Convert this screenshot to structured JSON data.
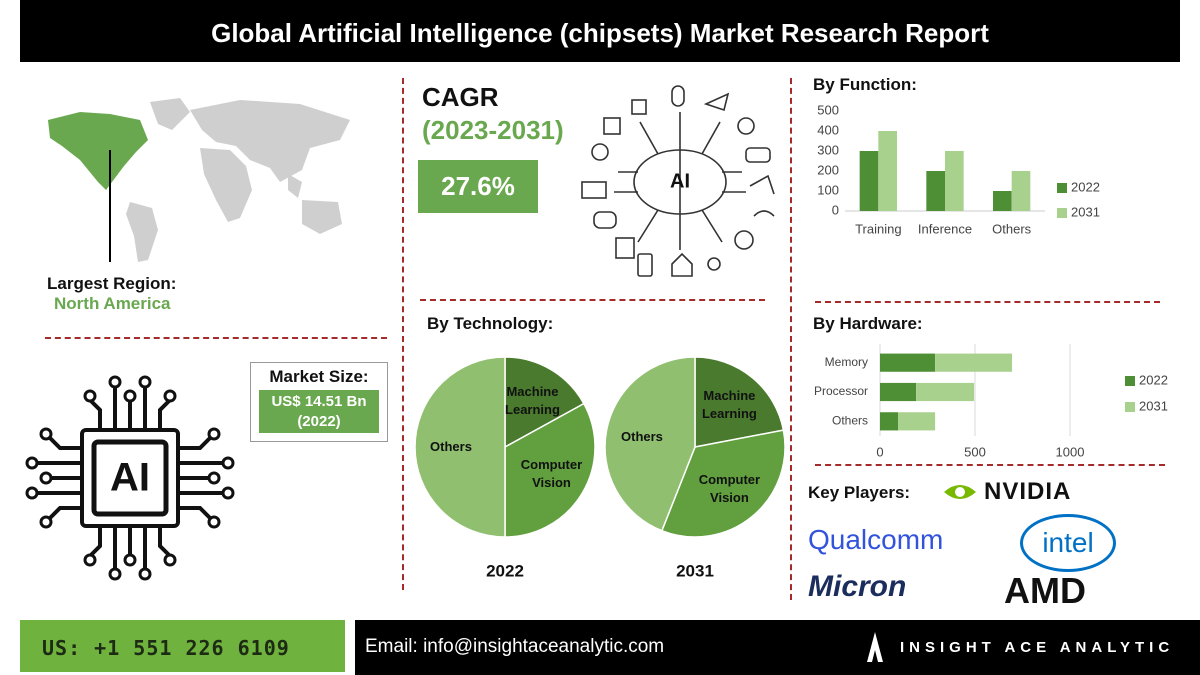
{
  "header": {
    "title": "Global Artificial Intelligence (chipsets) Market Research Report"
  },
  "region": {
    "label": "Largest Region:",
    "value": "North America"
  },
  "ai_label": "AI",
  "cagr": {
    "label": "CAGR",
    "period": "(2023-2031)",
    "value": "27.6%"
  },
  "market_size": {
    "label": "Market Size:",
    "value": "US$ 14.51 Bn",
    "year": "(2022)"
  },
  "key_players": {
    "label": "Key Players:",
    "companies": [
      "NVIDIA",
      "Qualcomm",
      "intel",
      "Micron",
      "AMD"
    ]
  },
  "footer": {
    "phone": "US: +1 551 226 6109",
    "email": "Email: info@insightaceanalytic.com",
    "brand": "INSIGHT ACE ANALYTIC"
  },
  "chart_data": [
    {
      "type": "bar",
      "title": "By Function:",
      "categories": [
        "Training",
        "Inference",
        "Others"
      ],
      "series": [
        {
          "name": "2022",
          "color": "#4e8f35",
          "values": [
            300,
            200,
            100
          ]
        },
        {
          "name": "2031",
          "color": "#a9d18e",
          "values": [
            400,
            300,
            200
          ]
        }
      ],
      "ylim": [
        0,
        500
      ],
      "yticks": [
        0,
        100,
        200,
        300,
        400,
        500
      ],
      "grid": false,
      "legend": "right"
    },
    {
      "type": "pie",
      "title": "By Technology:",
      "categories": [
        "Machine Learning",
        "Computer Vision",
        "Others"
      ],
      "colors": [
        "#4a7a2e",
        "#619f3f",
        "#8fbf6f"
      ],
      "series": [
        {
          "name": "2022",
          "values": [
            17,
            33,
            50
          ]
        },
        {
          "name": "2031",
          "values": [
            22,
            34,
            44
          ]
        }
      ]
    },
    {
      "type": "bar",
      "horizontal": true,
      "stacked": true,
      "title": "By Hardware:",
      "categories": [
        "Memory",
        "Processor",
        "Others"
      ],
      "series": [
        {
          "name": "2022",
          "color": "#4e8f35",
          "values": [
            290,
            190,
            95
          ]
        },
        {
          "name": "2031",
          "color": "#a9d18e",
          "values": [
            405,
            305,
            195
          ]
        }
      ],
      "xlim": [
        0,
        1000
      ],
      "xticks": [
        0,
        500,
        1000
      ],
      "grid": true,
      "legend": "right"
    }
  ]
}
